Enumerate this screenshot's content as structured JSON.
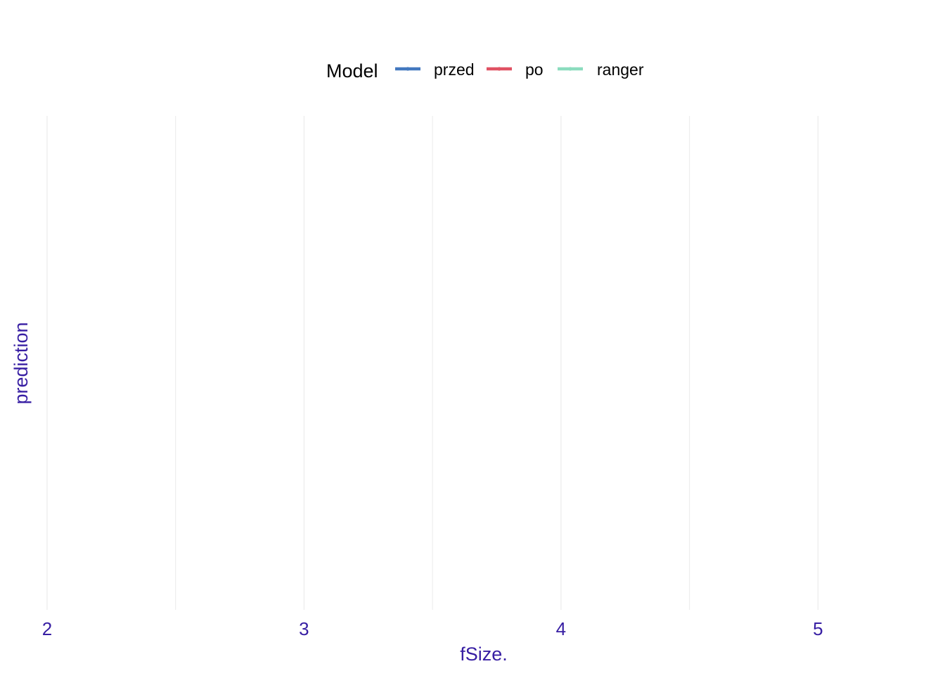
{
  "chart_data": {
    "type": "line",
    "title": "",
    "xlabel": "fSize.",
    "ylabel": "prediction",
    "xlim": [
      1.97,
      5.27
    ],
    "x_ticks": [
      2,
      3,
      4,
      5
    ],
    "x_tick_labels": [
      "2",
      "3",
      "4",
      "5"
    ],
    "x_minor_gridlines": [
      2.5,
      3.5,
      4.5
    ],
    "y_ticks": [],
    "grid": true,
    "legend": {
      "title": "Model",
      "position": "top"
    },
    "series": [
      {
        "name": "przed",
        "color": "#4378bf",
        "values": []
      },
      {
        "name": "po",
        "color": "#e05263",
        "values": []
      },
      {
        "name": "ranger",
        "color": "#8bdcbe",
        "values": []
      }
    ]
  },
  "colors": {
    "axis_text": "#371ea3",
    "legend_text": "#000000",
    "grid": "#ebebeb"
  }
}
